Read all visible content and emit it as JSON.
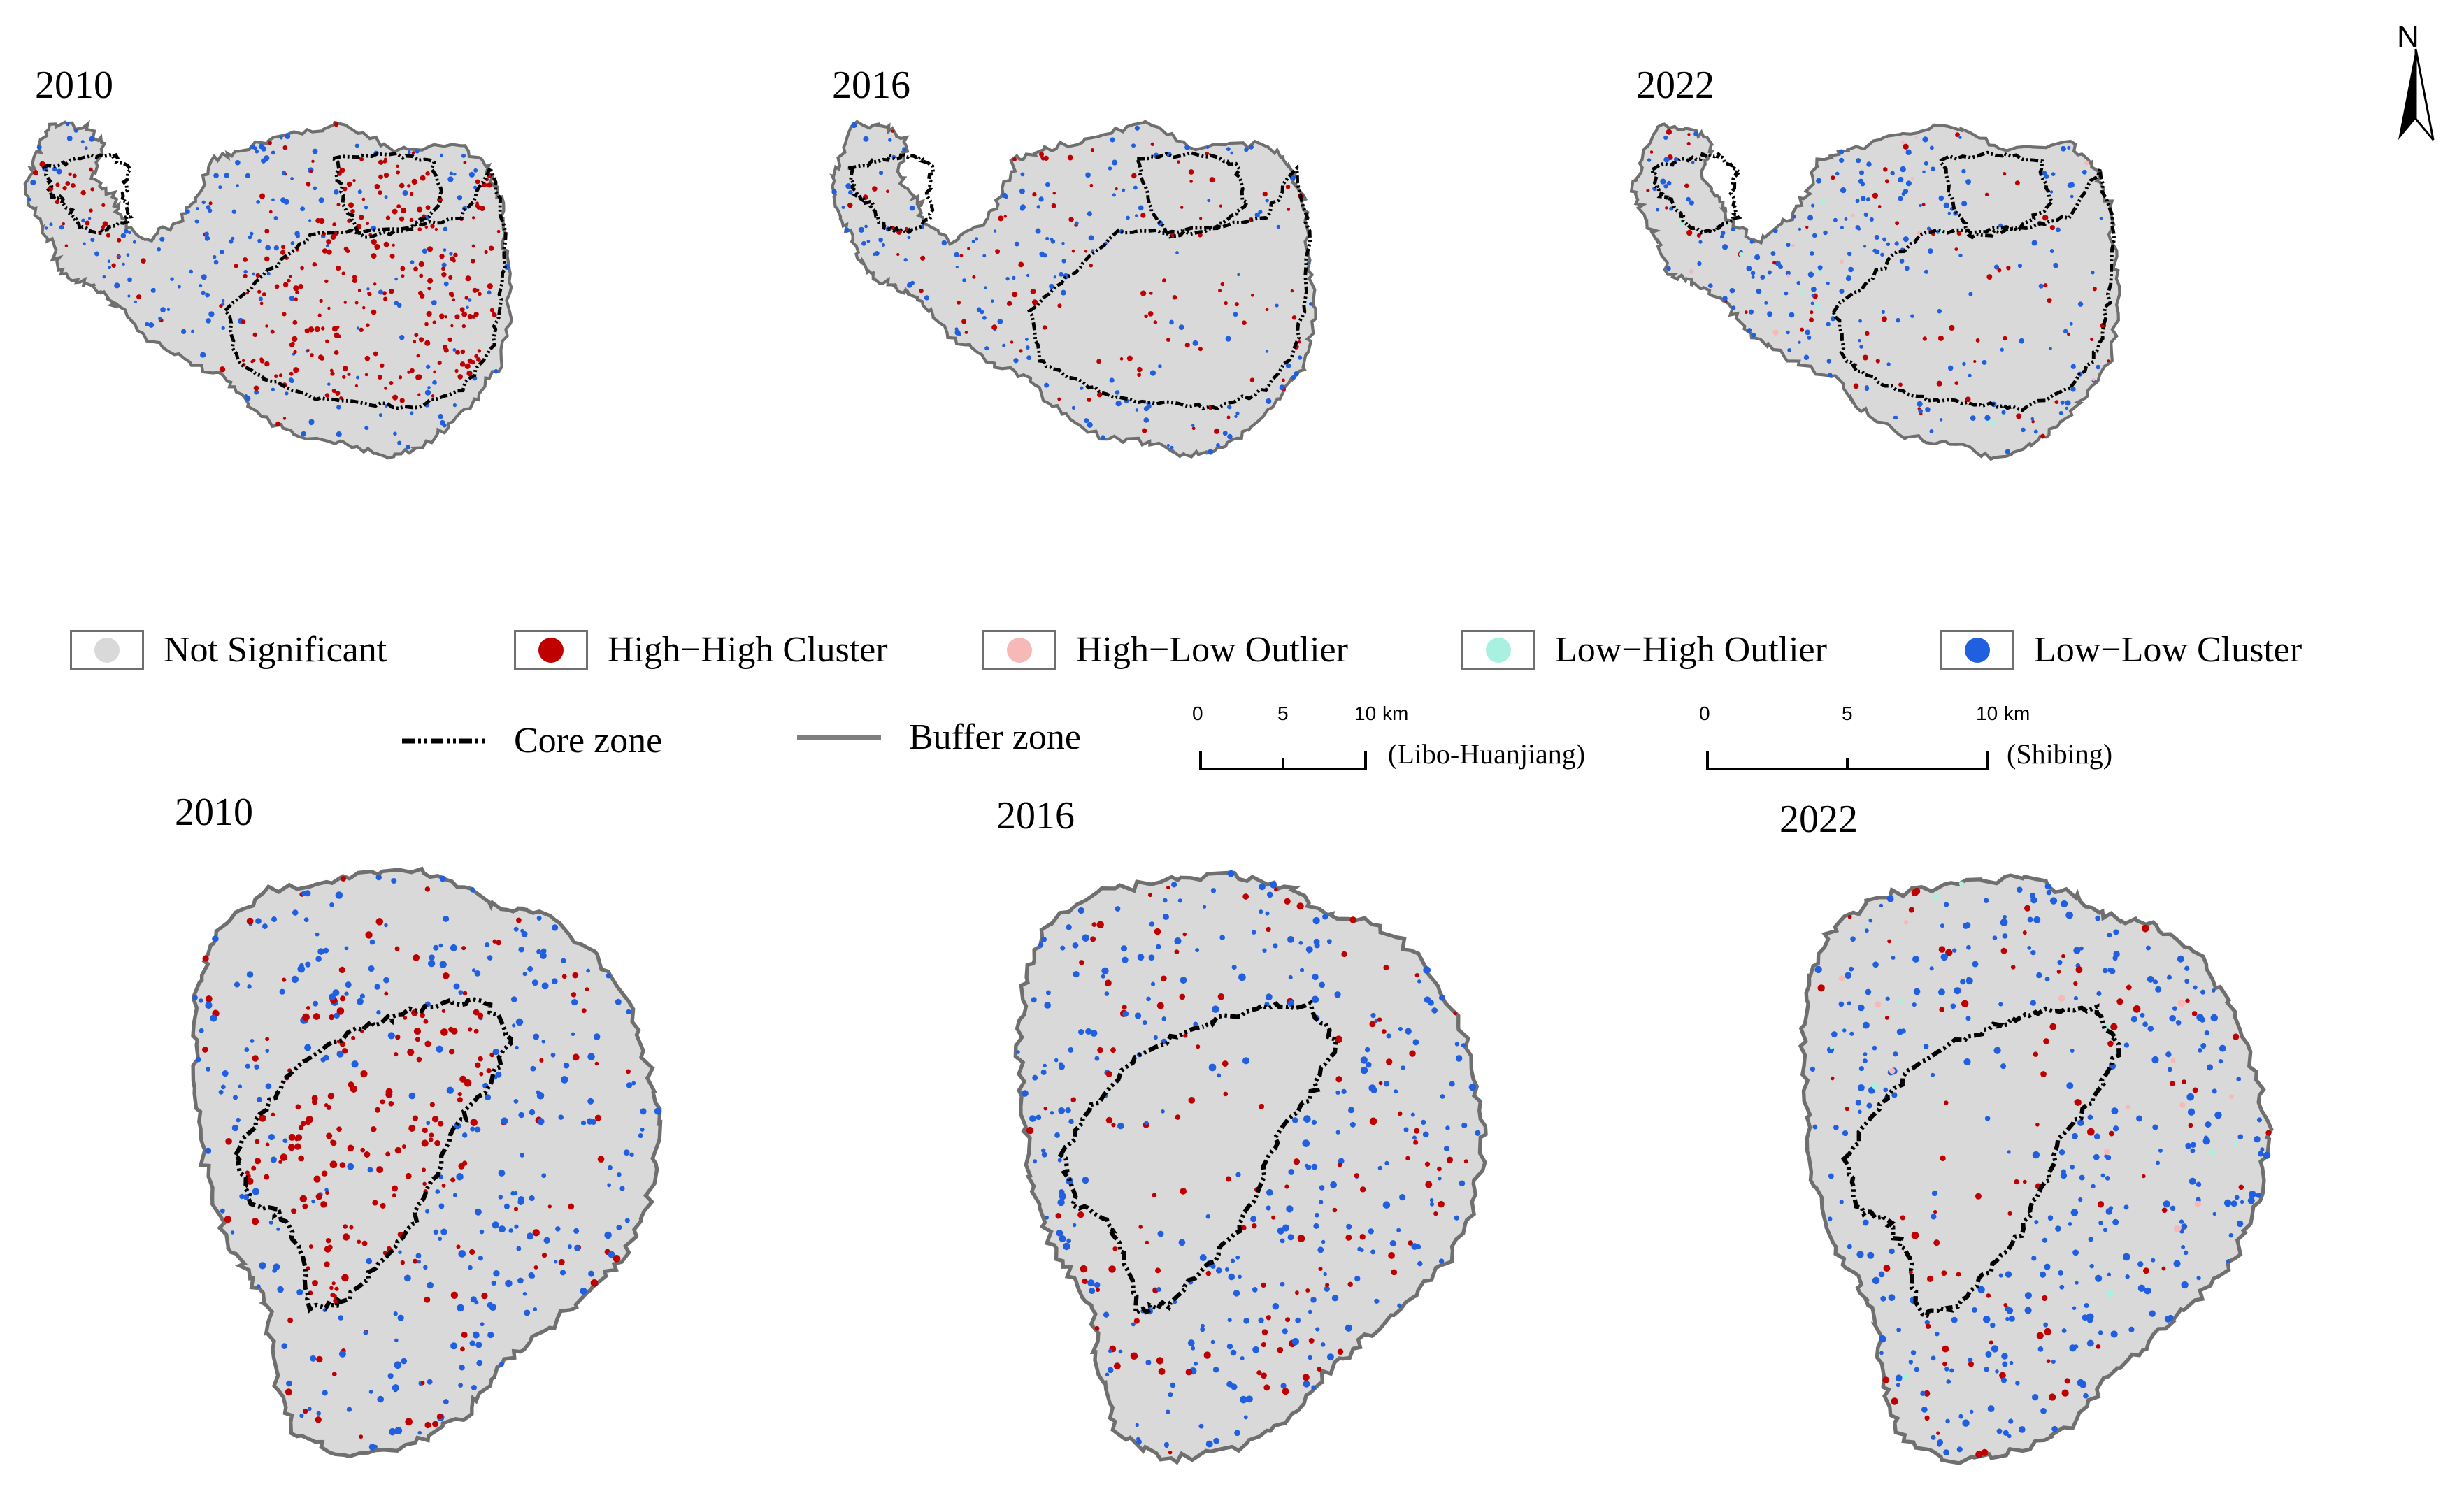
{
  "top_row": {
    "region": "Libo-Huanjiang",
    "panels": [
      {
        "year": "2010",
        "theme": "hh"
      },
      {
        "year": "2016",
        "theme": "mixed"
      },
      {
        "year": "2022",
        "theme": "ll"
      }
    ]
  },
  "bottom_row": {
    "region": "Shibing",
    "panels": [
      {
        "year": "2010",
        "theme": "hh"
      },
      {
        "year": "2016",
        "theme": "mixed"
      },
      {
        "year": "2022",
        "theme": "ll"
      }
    ]
  },
  "north_arrow": {
    "label": "N"
  },
  "legend": {
    "classes": [
      {
        "label": "Not Significant",
        "color": "#d9d9d9"
      },
      {
        "label": "High−High Cluster",
        "color": "#c00000"
      },
      {
        "label": "High−Low Outlier",
        "color": "#f7b8b8"
      },
      {
        "label": "Low−High Outlier",
        "color": "#a8f0e0"
      },
      {
        "label": "Low−Low Cluster",
        "color": "#1f5fe0"
      }
    ],
    "lines": [
      {
        "label": "Core zone",
        "style": "dash-dot",
        "color": "#000000"
      },
      {
        "label": "Buffer zone",
        "style": "solid",
        "color": "#7f7f7f"
      }
    ]
  },
  "scalebars": [
    {
      "ticks": [
        "0",
        "5",
        "10"
      ],
      "unit": "km",
      "name": "(Libo-Huanjiang)"
    },
    {
      "ticks": [
        "0",
        "5",
        "10"
      ],
      "unit": "km",
      "name": "(Shibing)"
    }
  ],
  "colors": {
    "not_significant": "#d9d9d9",
    "high_high": "#c00000",
    "high_low": "#f7b8b8",
    "low_high": "#a8f0e0",
    "low_low": "#1f5fe0",
    "boundary": "#6f6f6f",
    "core": "#000000"
  }
}
